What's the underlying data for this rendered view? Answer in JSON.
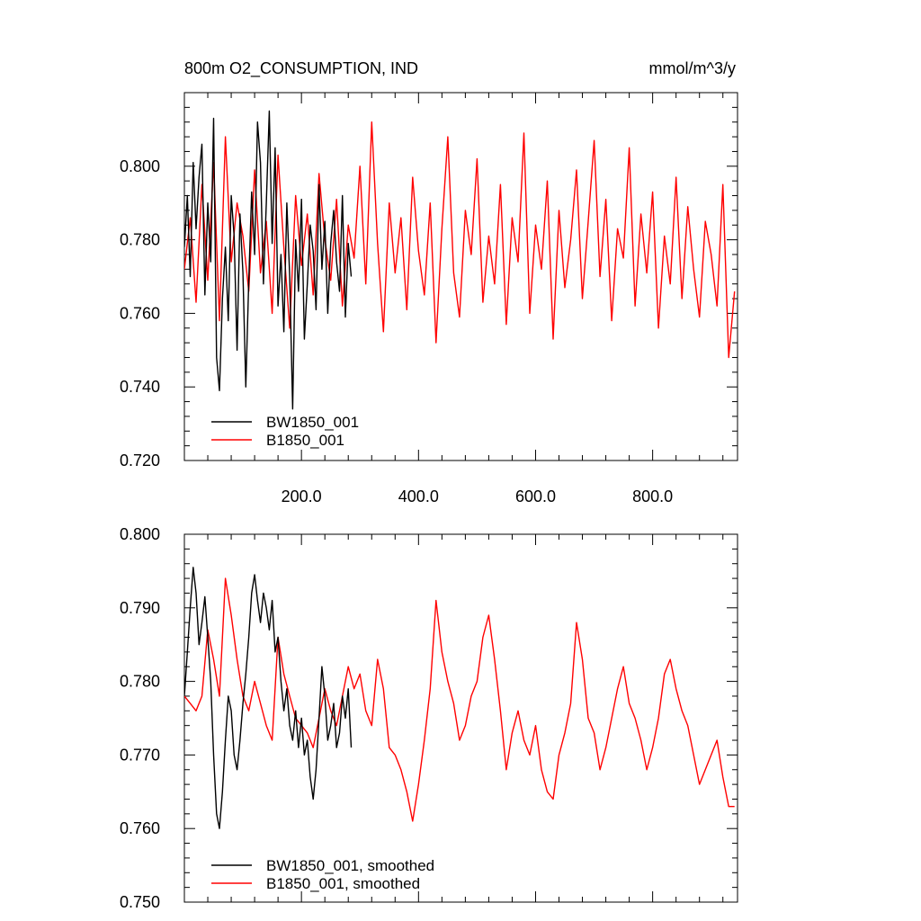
{
  "figure": {
    "title_left": "800m O2_CONSUMPTION, IND",
    "title_right": "mmol/m^3/y"
  },
  "colors": {
    "bw": "#000000",
    "b": "#ff0000"
  },
  "chart_data": [
    {
      "type": "line",
      "xlim": [
        0,
        945
      ],
      "ylim": [
        0.72,
        0.82
      ],
      "yticks": [
        0.72,
        0.74,
        0.76,
        0.78,
        0.8
      ],
      "ytick_labels": [
        "0.720",
        "0.740",
        "0.760",
        "0.780",
        "0.800"
      ],
      "xticks": [
        200,
        400,
        600,
        800
      ],
      "xtick_labels": [
        "200.0",
        "400.0",
        "600.0",
        "800.0"
      ],
      "legend_position": "bottom-left",
      "series": [
        {
          "name": "BW1850_001",
          "color": "#000000",
          "x": [
            0,
            5,
            10,
            15,
            20,
            25,
            30,
            35,
            40,
            45,
            50,
            55,
            60,
            65,
            70,
            75,
            80,
            85,
            90,
            95,
            100,
            105,
            110,
            115,
            120,
            125,
            130,
            135,
            140,
            145,
            150,
            155,
            160,
            165,
            170,
            175,
            180,
            185,
            190,
            195,
            200,
            205,
            210,
            215,
            220,
            225,
            230,
            235,
            240,
            245,
            250,
            255,
            260,
            265,
            270,
            275,
            280,
            285
          ],
          "values": [
            0.778,
            0.792,
            0.77,
            0.801,
            0.783,
            0.797,
            0.806,
            0.765,
            0.79,
            0.774,
            0.813,
            0.748,
            0.739,
            0.764,
            0.778,
            0.758,
            0.792,
            0.781,
            0.75,
            0.787,
            0.771,
            0.74,
            0.769,
            0.793,
            0.776,
            0.812,
            0.801,
            0.768,
            0.79,
            0.815,
            0.779,
            0.805,
            0.762,
            0.776,
            0.755,
            0.79,
            0.77,
            0.734,
            0.78,
            0.766,
            0.791,
            0.753,
            0.768,
            0.784,
            0.777,
            0.761,
            0.795,
            0.772,
            0.785,
            0.76,
            0.779,
            0.788,
            0.774,
            0.766,
            0.792,
            0.759,
            0.779,
            0.77
          ]
        },
        {
          "name": "B1850_001",
          "color": "#ff0000",
          "x": [
            0,
            10,
            20,
            30,
            40,
            50,
            60,
            70,
            80,
            90,
            100,
            110,
            120,
            130,
            140,
            150,
            160,
            170,
            180,
            190,
            200,
            210,
            220,
            230,
            240,
            250,
            260,
            270,
            280,
            290,
            300,
            310,
            320,
            330,
            340,
            350,
            360,
            370,
            380,
            390,
            400,
            410,
            420,
            430,
            440,
            450,
            460,
            470,
            480,
            490,
            500,
            510,
            520,
            530,
            540,
            550,
            560,
            570,
            580,
            590,
            600,
            610,
            620,
            630,
            640,
            650,
            660,
            670,
            680,
            690,
            700,
            710,
            720,
            730,
            740,
            750,
            760,
            770,
            780,
            790,
            800,
            810,
            820,
            830,
            840,
            850,
            860,
            870,
            880,
            890,
            900,
            910,
            920,
            930,
            940
          ],
          "values": [
            0.772,
            0.786,
            0.763,
            0.795,
            0.769,
            0.801,
            0.758,
            0.808,
            0.774,
            0.79,
            0.781,
            0.766,
            0.799,
            0.771,
            0.785,
            0.76,
            0.803,
            0.778,
            0.756,
            0.792,
            0.773,
            0.787,
            0.765,
            0.798,
            0.78,
            0.769,
            0.791,
            0.762,
            0.784,
            0.775,
            0.8,
            0.768,
            0.812,
            0.779,
            0.755,
            0.79,
            0.771,
            0.786,
            0.761,
            0.797,
            0.777,
            0.765,
            0.79,
            0.752,
            0.783,
            0.808,
            0.771,
            0.759,
            0.788,
            0.776,
            0.802,
            0.763,
            0.781,
            0.768,
            0.795,
            0.757,
            0.786,
            0.774,
            0.809,
            0.76,
            0.784,
            0.772,
            0.796,
            0.753,
            0.788,
            0.767,
            0.78,
            0.799,
            0.764,
            0.785,
            0.807,
            0.77,
            0.791,
            0.758,
            0.783,
            0.775,
            0.805,
            0.762,
            0.787,
            0.771,
            0.793,
            0.756,
            0.781,
            0.768,
            0.797,
            0.764,
            0.789,
            0.772,
            0.759,
            0.785,
            0.776,
            0.762,
            0.795,
            0.748,
            0.766
          ]
        }
      ]
    },
    {
      "type": "line",
      "xlim": [
        0,
        945
      ],
      "ylim": [
        0.75,
        0.8
      ],
      "yticks": [
        0.75,
        0.76,
        0.77,
        0.78,
        0.79,
        0.8
      ],
      "ytick_labels": [
        "0.750",
        "0.760",
        "0.770",
        "0.780",
        "0.790",
        "0.800"
      ],
      "legend_position": "bottom-left",
      "series": [
        {
          "name": "BW1850_001, smoothed",
          "color": "#000000",
          "x": [
            0,
            5,
            10,
            15,
            20,
            25,
            30,
            35,
            40,
            45,
            50,
            55,
            60,
            65,
            70,
            75,
            80,
            85,
            90,
            95,
            100,
            105,
            110,
            115,
            120,
            125,
            130,
            135,
            140,
            145,
            150,
            155,
            160,
            165,
            170,
            175,
            180,
            185,
            190,
            195,
            200,
            205,
            210,
            215,
            220,
            225,
            230,
            235,
            240,
            245,
            250,
            255,
            260,
            265,
            270,
            275,
            280,
            285
          ],
          "values": [
            0.778,
            0.784,
            0.79,
            0.7955,
            0.792,
            0.785,
            0.788,
            0.7915,
            0.786,
            0.78,
            0.77,
            0.762,
            0.76,
            0.765,
            0.772,
            0.778,
            0.776,
            0.77,
            0.768,
            0.772,
            0.777,
            0.781,
            0.786,
            0.792,
            0.7945,
            0.791,
            0.788,
            0.792,
            0.79,
            0.787,
            0.791,
            0.784,
            0.786,
            0.78,
            0.776,
            0.779,
            0.774,
            0.772,
            0.776,
            0.771,
            0.775,
            0.77,
            0.772,
            0.767,
            0.764,
            0.768,
            0.775,
            0.782,
            0.778,
            0.772,
            0.774,
            0.777,
            0.771,
            0.773,
            0.778,
            0.775,
            0.779,
            0.771
          ]
        },
        {
          "name": "B1850_001, smoothed",
          "color": "#ff0000",
          "x": [
            0,
            10,
            20,
            30,
            40,
            50,
            60,
            70,
            80,
            90,
            100,
            110,
            120,
            130,
            140,
            150,
            160,
            170,
            180,
            190,
            200,
            210,
            220,
            230,
            240,
            250,
            260,
            270,
            280,
            290,
            300,
            310,
            320,
            330,
            340,
            350,
            360,
            370,
            380,
            390,
            400,
            410,
            420,
            430,
            440,
            450,
            460,
            470,
            480,
            490,
            500,
            510,
            520,
            530,
            540,
            550,
            560,
            570,
            580,
            590,
            600,
            610,
            620,
            630,
            640,
            650,
            660,
            670,
            680,
            690,
            700,
            710,
            720,
            730,
            740,
            750,
            760,
            770,
            780,
            790,
            800,
            810,
            820,
            830,
            840,
            850,
            860,
            870,
            880,
            890,
            900,
            910,
            920,
            930,
            940
          ],
          "values": [
            0.778,
            0.777,
            0.776,
            0.778,
            0.787,
            0.783,
            0.778,
            0.794,
            0.789,
            0.783,
            0.778,
            0.776,
            0.78,
            0.777,
            0.774,
            0.772,
            0.786,
            0.781,
            0.778,
            0.775,
            0.774,
            0.773,
            0.771,
            0.775,
            0.779,
            0.776,
            0.774,
            0.778,
            0.782,
            0.779,
            0.781,
            0.776,
            0.774,
            0.783,
            0.779,
            0.771,
            0.77,
            0.768,
            0.765,
            0.761,
            0.766,
            0.772,
            0.779,
            0.791,
            0.784,
            0.78,
            0.777,
            0.772,
            0.774,
            0.778,
            0.78,
            0.786,
            0.789,
            0.783,
            0.776,
            0.768,
            0.773,
            0.776,
            0.772,
            0.77,
            0.774,
            0.768,
            0.765,
            0.764,
            0.77,
            0.773,
            0.777,
            0.788,
            0.783,
            0.775,
            0.773,
            0.768,
            0.771,
            0.775,
            0.779,
            0.782,
            0.777,
            0.775,
            0.772,
            0.768,
            0.771,
            0.775,
            0.781,
            0.783,
            0.779,
            0.776,
            0.774,
            0.77,
            0.766,
            0.768,
            0.77,
            0.772,
            0.767,
            0.763,
            0.763
          ]
        }
      ]
    }
  ]
}
